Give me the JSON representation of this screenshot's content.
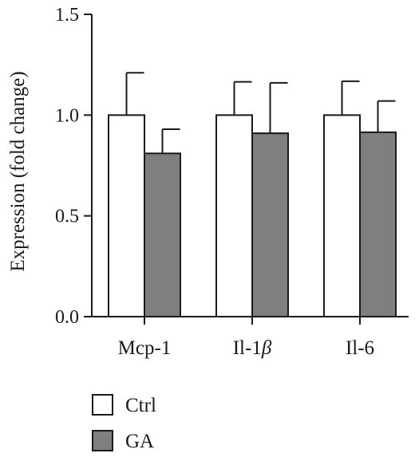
{
  "chart_data": {
    "type": "bar",
    "ylabel": "Expression (fold change)",
    "ylim": [
      0,
      1.5
    ],
    "yticks": [
      "0.0",
      "0.5",
      "1.0",
      "1.5"
    ],
    "categories": [
      "Mcp-1",
      "Il-1",
      "Il-6"
    ],
    "category_suffix": [
      "",
      "β",
      ""
    ],
    "series": [
      {
        "name": "Ctrl",
        "values": [
          1.0,
          1.0,
          1.0
        ],
        "errors": [
          0.21,
          0.165,
          0.168
        ],
        "color": "#ffffff"
      },
      {
        "name": "GA",
        "values": [
          0.81,
          0.91,
          0.915
        ],
        "errors": [
          0.12,
          0.25,
          0.155
        ],
        "color": "#7f7f7f"
      }
    ],
    "legend": "bottom-left",
    "grid": false
  }
}
